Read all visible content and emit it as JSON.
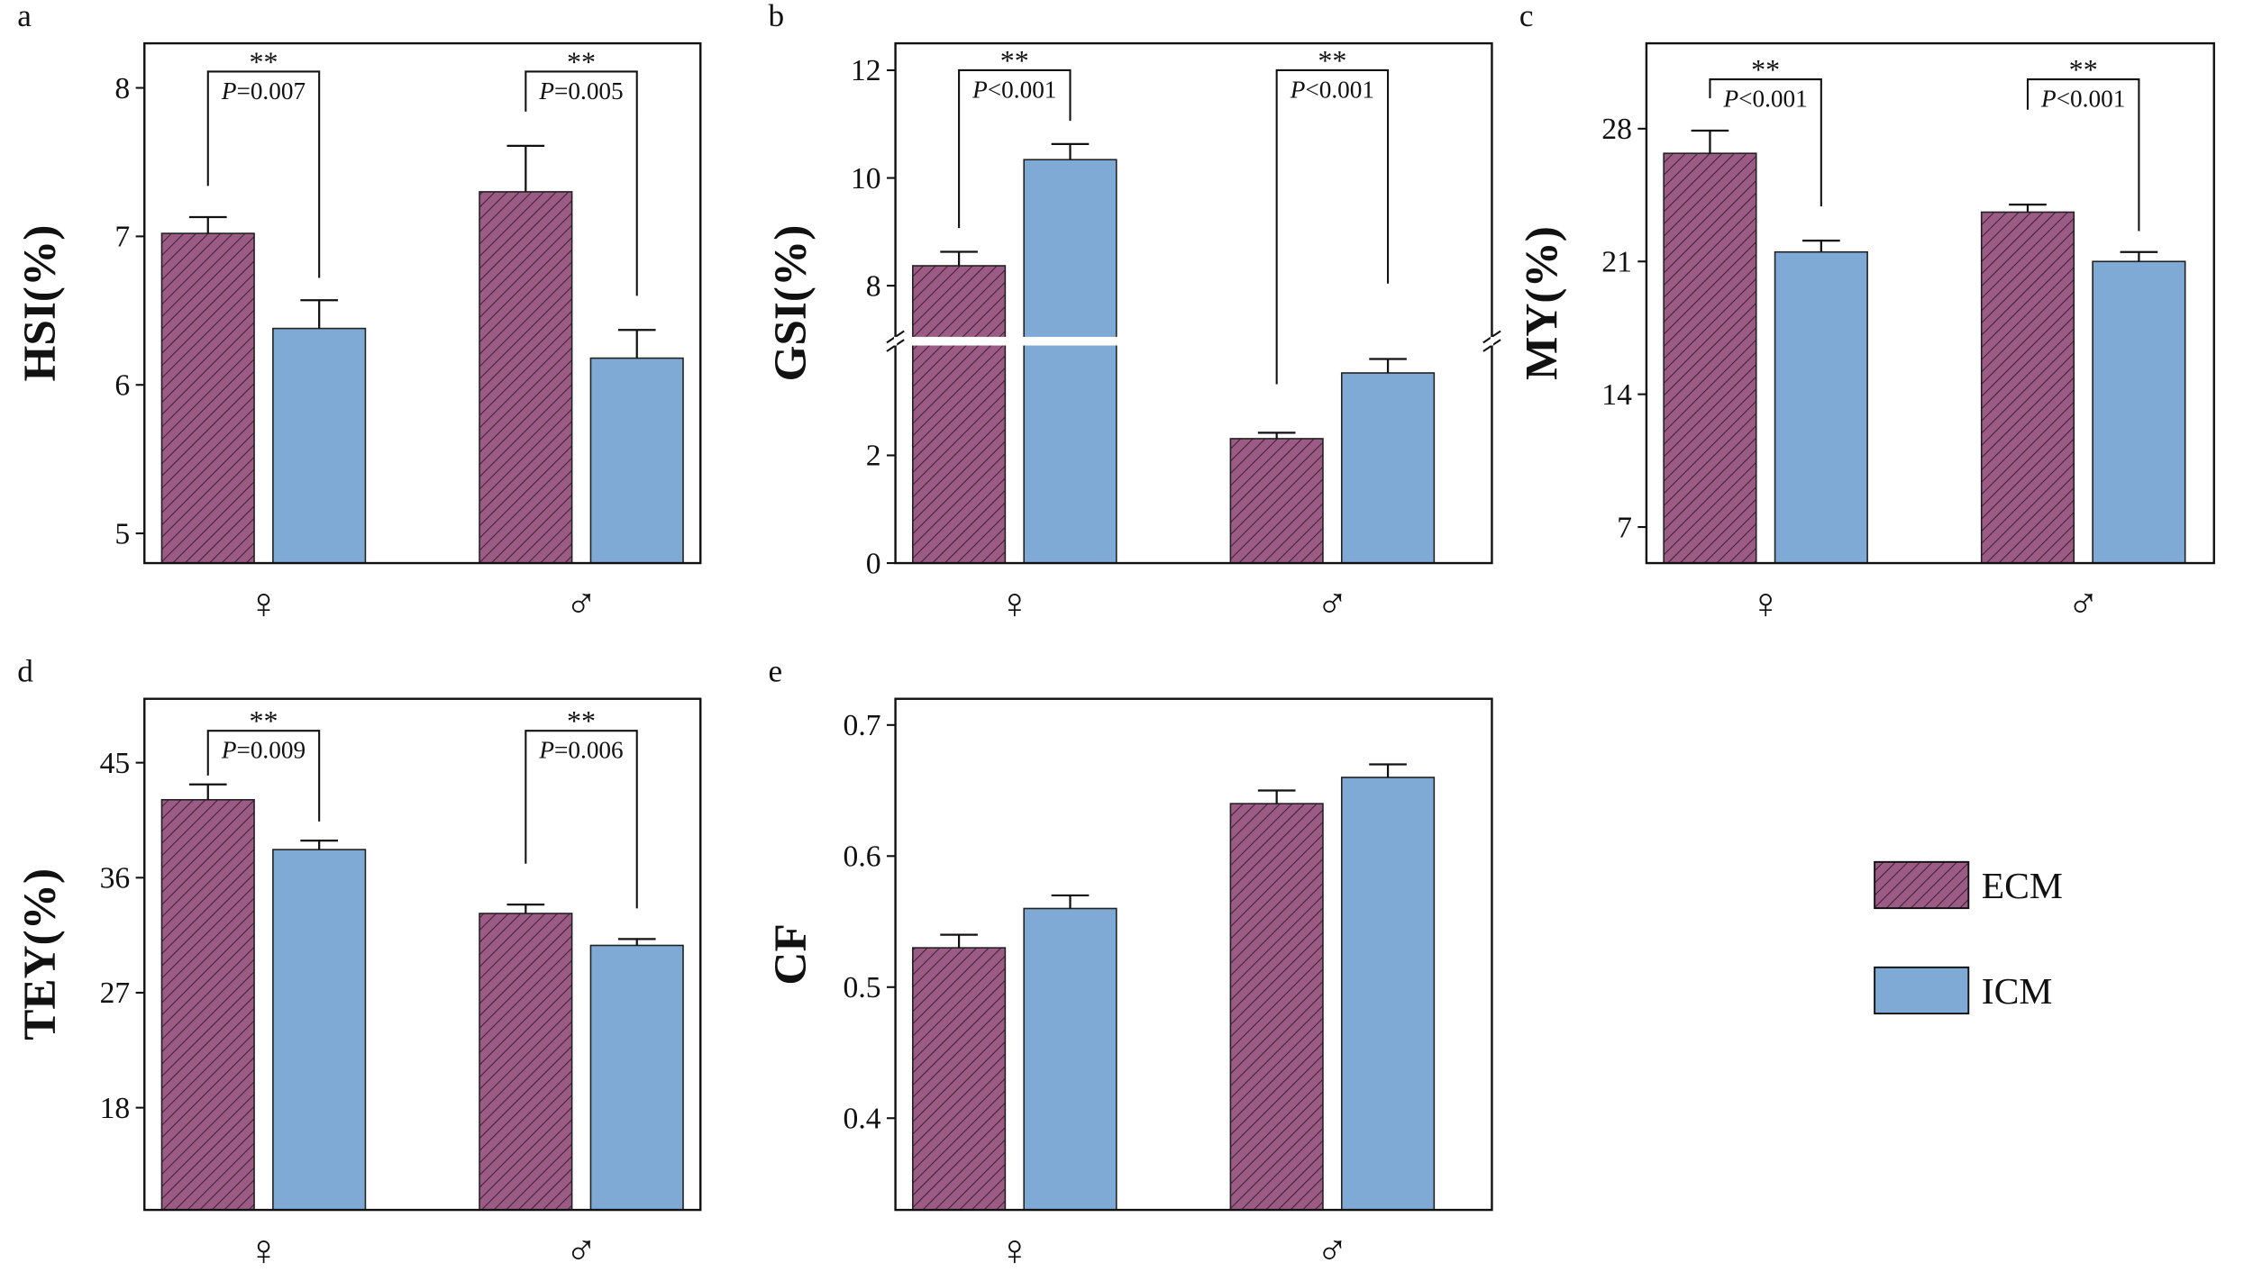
{
  "chart_data": [
    {
      "type": "bar",
      "panel": "a",
      "ylabel": "HSI(%)",
      "categories": [
        "♀",
        "♂"
      ],
      "ylim": [
        4.8,
        8.3
      ],
      "yticks": [
        "5",
        "6",
        "7",
        "8"
      ],
      "series": [
        {
          "name": "ECM",
          "values": [
            7.02,
            7.3
          ],
          "errors": [
            0.11,
            0.31
          ]
        },
        {
          "name": "ICM",
          "values": [
            6.38,
            6.18
          ],
          "errors": [
            0.19,
            0.19
          ]
        }
      ],
      "brackets": [
        {
          "stars": "**",
          "p_symbol": "P",
          "p_value": "=0.007",
          "top": 8.11,
          "left_end": 7.34,
          "right_end": 6.72
        },
        {
          "stars": "**",
          "p_symbol": "P",
          "p_value": "=0.005",
          "top": 8.11,
          "left_end": 7.84,
          "right_end": 6.6
        }
      ]
    },
    {
      "type": "bar",
      "panel": "b",
      "ylabel": "GSI(%)",
      "categories": [
        "♀",
        "♂"
      ],
      "ylim": [
        0,
        12.5
      ],
      "axis_break": [
        4.12,
        6.97
      ],
      "yticks": [
        "0",
        "2",
        "8",
        "10",
        "12"
      ],
      "series": [
        {
          "name": "ECM",
          "values": [
            8.37,
            2.31
          ],
          "errors": [
            0.26,
            0.11
          ]
        },
        {
          "name": "ICM",
          "values": [
            10.34,
            3.53
          ],
          "errors": [
            0.29,
            0.26
          ]
        }
      ],
      "brackets": [
        {
          "stars": "**",
          "p_symbol": "P",
          "p_value": "<0.001",
          "top": 12.0,
          "left_end": 9.07,
          "right_end": 11.06
        },
        {
          "stars": "**",
          "p_symbol": "P",
          "p_value": "<0.001",
          "top": 12.0,
          "left_end": 3.32,
          "right_end": 8.04
        }
      ]
    },
    {
      "type": "bar",
      "panel": "c",
      "ylabel": "MY(%)",
      "categories": [
        "♀",
        "♂"
      ],
      "ylim": [
        5.1,
        32.5
      ],
      "yticks": [
        "7",
        "14",
        "21",
        "28"
      ],
      "series": [
        {
          "name": "ECM",
          "values": [
            26.7,
            23.6
          ],
          "errors": [
            1.2,
            0.4
          ]
        },
        {
          "name": "ICM",
          "values": [
            21.5,
            21.0
          ],
          "errors": [
            0.6,
            0.5
          ]
        }
      ],
      "brackets": [
        {
          "stars": "**",
          "p_symbol": "P",
          "p_value": "<0.001",
          "top": 30.6,
          "left_end": 29.6,
          "right_end": 23.9
        },
        {
          "stars": "**",
          "p_symbol": "P",
          "p_value": "<0.001",
          "top": 30.6,
          "left_end": 29.0,
          "right_end": 22.6
        }
      ]
    },
    {
      "type": "bar",
      "panel": "d",
      "ylabel": "TEY(%)",
      "categories": [
        "♀",
        "♂"
      ],
      "ylim": [
        10.0,
        50.0
      ],
      "yticks": [
        "18",
        "27",
        "36",
        "45"
      ],
      "series": [
        {
          "name": "ECM",
          "values": [
            42.1,
            33.2
          ],
          "errors": [
            1.2,
            0.7
          ]
        },
        {
          "name": "ICM",
          "values": [
            38.2,
            30.7
          ],
          "errors": [
            0.7,
            0.5
          ]
        }
      ],
      "brackets": [
        {
          "stars": "**",
          "p_symbol": "P",
          "p_value": "=0.009",
          "top": 47.5,
          "left_end": 44.0,
          "right_end": 40.4
        },
        {
          "stars": "**",
          "p_symbol": "P",
          "p_value": "=0.006",
          "top": 47.5,
          "left_end": 37.1,
          "right_end": 33.6
        }
      ]
    },
    {
      "type": "bar",
      "panel": "e",
      "ylabel": "CF",
      "categories": [
        "♀",
        "♂"
      ],
      "ylim": [
        0.33,
        0.72
      ],
      "yticks": [
        "0.4",
        "0.5",
        "0.6",
        "0.7"
      ],
      "series": [
        {
          "name": "ECM",
          "values": [
            0.53,
            0.64
          ],
          "errors": [
            0.01,
            0.01
          ]
        },
        {
          "name": "ICM",
          "values": [
            0.56,
            0.66
          ],
          "errors": [
            0.01,
            0.01
          ]
        }
      ],
      "brackets": []
    }
  ],
  "legend": {
    "position": "right",
    "items": [
      {
        "label": "ECM",
        "pattern": "hatched"
      },
      {
        "label": "ICM",
        "pattern": "solid"
      }
    ]
  },
  "colors": {
    "ECM": "#9b5b84",
    "ECM_hatch": "#3b2234",
    "ICM": "#7eaad5",
    "axis": "#111111"
  }
}
